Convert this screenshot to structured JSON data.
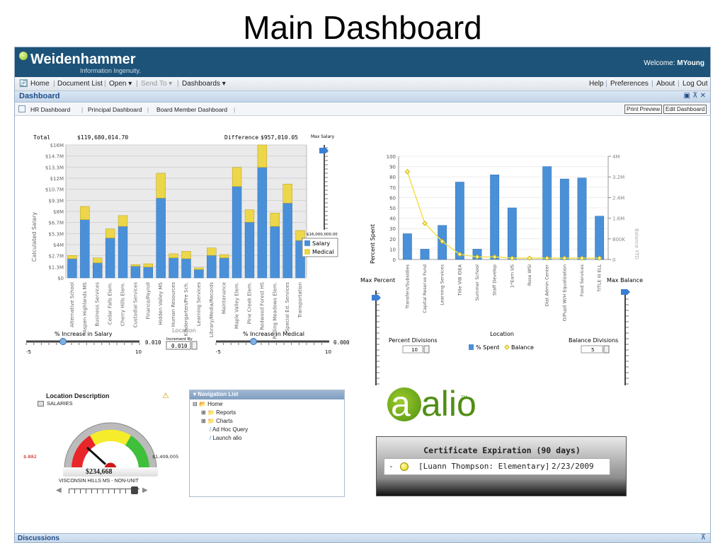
{
  "slide": {
    "title": "Main Dashboard"
  },
  "brand": {
    "name": "Weidenhammer",
    "tagline": "Information Ingenuity.",
    "welcome_label": "Welcome:",
    "user": "MYoung"
  },
  "menu": {
    "left": [
      "Home",
      "Document List",
      "Open ▾",
      "Send To ▾",
      "Dashboards ▾"
    ],
    "right": [
      "Help",
      "Preferences",
      "About",
      "Log Out"
    ]
  },
  "dashboard": {
    "title": "Dashboard",
    "window_controls": "▣ ⊼ ✕"
  },
  "tabs": [
    "HR Dashboard",
    "Principal Dashboard",
    "Board Member Dashboard"
  ],
  "actions": {
    "print": "Print Preview",
    "edit": "Edit Dashboard"
  },
  "salary_panel": {
    "total_label": "Total",
    "total_value": "$119,680,014.70",
    "difference_label": "Difference",
    "difference_value": "$957,010.05",
    "max_salary_label": "Max Salary",
    "max_salary_value": "$16,000,000.00",
    "increase_salary_label": "% Increase in Salary",
    "increase_salary_value": "0.010",
    "location_label": "Location",
    "increment_label": "Increment By",
    "increment_value": "0.010",
    "increase_medical_label": "% Increase in Medical",
    "increase_medical_value": "0.000",
    "slider_min": "-5",
    "slider_max": "10"
  },
  "spent_panel": {
    "max_percent_label": "Max Percent",
    "max_percent_value": "100",
    "percent_div_label": "Percent Divisions",
    "percent_div_value": "10",
    "balance_div_label": "Balance Divisions",
    "balance_div_value": "5",
    "max_balance_label": "Max Balance",
    "max_balance_value": "4000000"
  },
  "gauge": {
    "title": "Location Description",
    "category": "SALARIES",
    "min_label": "$-882",
    "max_label": "$1,409,005",
    "value": "$234,668",
    "location": "VISCONSIN HILLS MS - NON-UNIT",
    "colors": {
      "red": "#e8262a",
      "yellow": "#f5ec2c",
      "green": "#3fbf3a"
    }
  },
  "nav": {
    "title": "Navigation List",
    "items": [
      "Home",
      "Reports",
      "Charts",
      "Ad Hoc Query",
      "Launch alio"
    ]
  },
  "alio": {
    "logo": "alio",
    "tm": "TM"
  },
  "certificate": {
    "title": "Certificate Expiration (90 days)",
    "dash": "-",
    "name": "[Luann Thompson: Elementary]",
    "date": "2/23/2009"
  },
  "footer": {
    "discussions": "Discussions"
  },
  "chart_data": [
    {
      "type": "bar",
      "stacked": true,
      "categories": [
        "Alternative School",
        "Aspen Highlands MS",
        "Business Services",
        "Cedar Falls Elem.",
        "Cherry Hills Elem.",
        "Custodial Services",
        "Finance/Payroll",
        "Hidden Valley MS",
        "Human Resources",
        "Kindergarten/Pre Sch.",
        "Learning Services",
        "Library/Media/Records",
        "Maintenance",
        "Maple Valley Elem.",
        "Pine Creek Elem.",
        "Redwood Forest HS",
        "Rolling Meadows Elem.",
        "Special Ed. Services",
        "Transportation"
      ],
      "series": [
        {
          "name": "Salary",
          "values": [
            2.3,
            7.0,
            1.8,
            4.8,
            6.2,
            1.4,
            1.3,
            9.6,
            2.4,
            2.3,
            1.0,
            2.7,
            2.4,
            11.0,
            6.7,
            13.3,
            6.2,
            9.0,
            4.5
          ]
        },
        {
          "name": "Medical",
          "values": [
            0.4,
            1.6,
            0.6,
            1.1,
            1.3,
            0.2,
            0.4,
            3.0,
            0.5,
            0.9,
            0.2,
            0.9,
            0.4,
            2.3,
            1.5,
            2.7,
            1.6,
            2.3,
            1.2
          ]
        }
      ],
      "ylabel": "Calculated Salary",
      "ylim": [
        0,
        16
      ],
      "y_unit": "millions",
      "yticks": [
        "$0",
        "$1.3M",
        "$2.7M",
        "$4M",
        "$5.3M",
        "$6.7M",
        "$8M",
        "$9.3M",
        "$10.7M",
        "$12M",
        "$13.3M",
        "$14.7M",
        "$16M"
      ],
      "legend": "right",
      "colors": {
        "Salary": "#4a90d9",
        "Medical": "#ecd64a"
      }
    },
    {
      "type": "bar",
      "categories": [
        "Transfers/Subsidies",
        "Capital Reserve Fund",
        "Learning Services",
        "Title VIB IDEA",
        "Summer School",
        "Staff Develop",
        "1*Earn US",
        "Rose WSI",
        "Dist Admin Center",
        "O/Pupil W/H Equalization",
        "Food Services",
        "TITLE III ELL"
      ],
      "series": [
        {
          "name": "% Spent",
          "axis": "left",
          "values": [
            25,
            10,
            33,
            75,
            10,
            82,
            50,
            0,
            90,
            78,
            79,
            42
          ]
        },
        {
          "name": "Balance",
          "axis": "right",
          "type": "line",
          "values": [
            3.4,
            1.4,
            0.7,
            0.2,
            0.1,
            0.1,
            0.05,
            0.05,
            0.05,
            0.05,
            0.05,
            0.05
          ]
        }
      ],
      "xlabel": "Location",
      "ylabel": "Percent Spent",
      "y2label": "Balance YTD",
      "ylim": [
        0,
        100
      ],
      "y2lim": [
        0,
        4
      ],
      "y2_unit": "millions",
      "yticks": [
        "0",
        "10",
        "20",
        "30",
        "40",
        "50",
        "60",
        "70",
        "80",
        "90",
        "100"
      ],
      "y2ticks": [
        "0",
        "800K",
        "1.6M",
        "2.4M",
        "3.2M",
        "4M"
      ],
      "legend": "bottom",
      "colors": {
        "% Spent": "#4a90d9",
        "Balance": "#f2e04b"
      }
    }
  ]
}
